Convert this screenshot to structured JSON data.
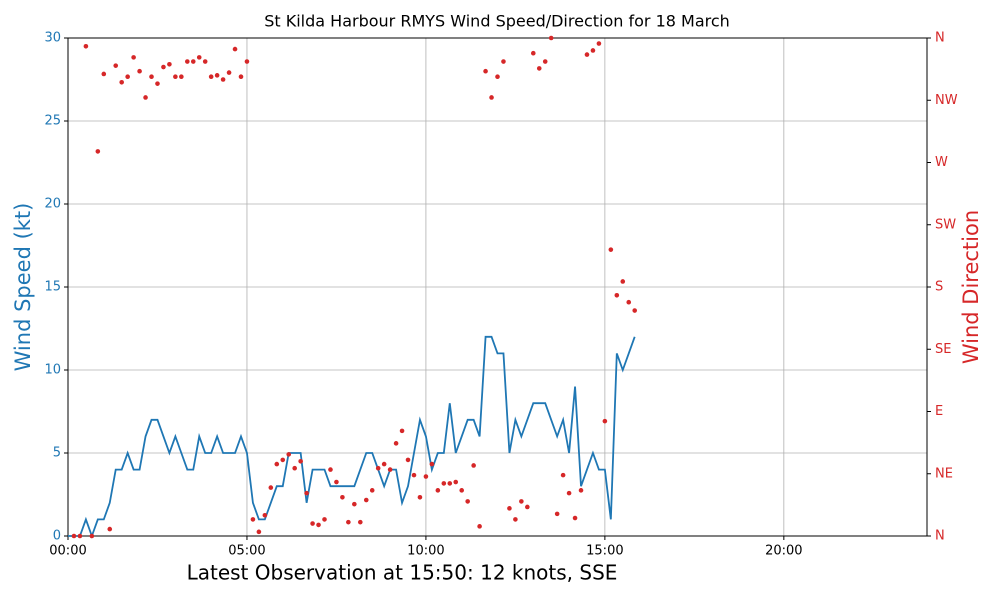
{
  "chart_data": {
    "type": "line",
    "title": "St Kilda Harbour RMYS Wind Speed/Direction for 18 March",
    "x_label": "Latest Observation at 15:50: 12 knots, SSE",
    "y_label": "Wind Speed (kt)",
    "y2_label": "Wind Direction",
    "grid": true,
    "xlim": [
      0,
      1440
    ],
    "xticks": [
      {
        "value": 0,
        "label": "00:00"
      },
      {
        "value": 300,
        "label": "05:00"
      },
      {
        "value": 600,
        "label": "10:00"
      },
      {
        "value": 900,
        "label": "15:00"
      },
      {
        "value": 1200,
        "label": "20:00"
      }
    ],
    "ylim": [
      0,
      30
    ],
    "yticks": [
      0,
      5,
      10,
      15,
      20,
      25,
      30
    ],
    "y2lim": [
      0,
      360
    ],
    "y2ticks": [
      {
        "value": 0,
        "label": "N"
      },
      {
        "value": 45,
        "label": "NE"
      },
      {
        "value": 90,
        "label": "E"
      },
      {
        "value": 135,
        "label": "SE"
      },
      {
        "value": 180,
        "label": "S"
      },
      {
        "value": 225,
        "label": "SW"
      },
      {
        "value": 270,
        "label": "W"
      },
      {
        "value": 315,
        "label": "NW"
      },
      {
        "value": 360,
        "label": "N"
      }
    ],
    "x": [
      0,
      10,
      20,
      30,
      40,
      50,
      60,
      70,
      80,
      90,
      100,
      110,
      120,
      130,
      140,
      150,
      160,
      170,
      180,
      190,
      200,
      210,
      220,
      230,
      240,
      250,
      260,
      270,
      280,
      290,
      300,
      310,
      320,
      330,
      340,
      350,
      360,
      370,
      380,
      390,
      400,
      410,
      420,
      430,
      440,
      450,
      460,
      470,
      480,
      490,
      500,
      510,
      520,
      530,
      540,
      550,
      560,
      570,
      580,
      590,
      600,
      610,
      620,
      630,
      640,
      650,
      660,
      670,
      680,
      690,
      700,
      710,
      720,
      730,
      740,
      750,
      760,
      770,
      780,
      790,
      800,
      810,
      820,
      830,
      840,
      850,
      860,
      870,
      880,
      890,
      900,
      910,
      920,
      930,
      940,
      950
    ],
    "series": [
      {
        "type": "line",
        "color": "#1f77b4",
        "values": [
          0,
          0,
          0,
          1,
          0,
          1,
          1,
          2,
          4,
          4,
          5,
          4,
          4,
          6,
          7,
          7,
          6,
          5,
          6,
          5,
          4,
          4,
          6,
          5,
          5,
          6,
          5,
          5,
          5,
          6,
          5,
          2,
          1,
          1,
          2,
          3,
          3,
          5,
          5,
          5,
          2,
          4,
          4,
          4,
          3,
          3,
          3,
          3,
          3,
          4,
          5,
          5,
          4,
          3,
          4,
          4,
          2,
          3,
          5,
          7,
          6,
          4,
          5,
          5,
          8,
          5,
          6,
          7,
          7,
          6,
          12,
          12,
          11,
          11,
          5,
          7,
          6,
          7,
          8,
          8,
          8,
          7,
          6,
          7,
          5,
          9,
          3,
          4,
          5,
          4,
          4,
          1,
          11,
          10,
          11,
          12
        ]
      },
      {
        "type": "scatter",
        "color": "#d62728",
        "axis": "y2",
        "values": [
          null,
          0,
          0,
          354,
          0,
          278,
          334,
          5,
          340,
          328,
          332,
          346,
          336,
          317,
          332,
          327,
          339,
          341,
          332,
          332,
          343,
          343,
          346,
          343,
          332,
          333,
          330,
          335,
          352,
          332,
          343,
          12,
          3,
          15,
          35,
          52,
          55,
          59,
          49,
          54,
          31,
          9,
          8,
          12,
          48,
          39,
          28,
          10,
          23,
          10,
          26,
          33,
          49,
          52,
          48,
          67,
          76,
          55,
          44,
          28,
          43,
          52,
          33,
          38,
          38,
          39,
          33,
          25,
          51,
          7,
          336,
          317,
          332,
          343,
          20,
          12,
          25,
          21,
          349,
          338,
          343,
          360,
          16,
          44,
          31,
          13,
          33,
          348,
          351,
          356,
          83,
          207,
          174,
          184,
          169,
          163
        ]
      }
    ]
  }
}
